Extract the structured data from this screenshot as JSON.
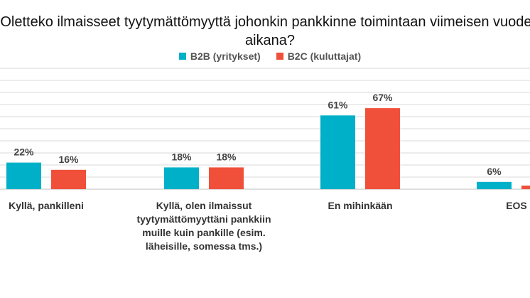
{
  "chart_data": {
    "type": "bar",
    "title": "Oletteko ilmaisseet tyytymättömyyttä johonkin pankkinne toimintaan viimeisen vuoden aikana?",
    "categories": [
      "Kyllä, pankilleni",
      "Kyllä, olen ilmaissut tyytymättömyyttäni pankkiin muille kuin pankille (esim. läheisille, somessa tms.)",
      "En mihinkään",
      "EOS"
    ],
    "series": [
      {
        "name": "B2B (yritykset)",
        "color": "#00B0C8",
        "values": [
          22,
          18,
          61,
          6
        ],
        "labels": [
          "22%",
          "18%",
          "61%",
          "6%"
        ]
      },
      {
        "name": "B2C (kuluttajat)",
        "color": "#F0503A",
        "values": [
          16,
          18,
          67,
          3
        ],
        "labels": [
          "16%",
          "18%",
          "67%",
          ""
        ]
      }
    ],
    "ylim": [
      0,
      100
    ],
    "grid": true,
    "legend_position": "top"
  }
}
